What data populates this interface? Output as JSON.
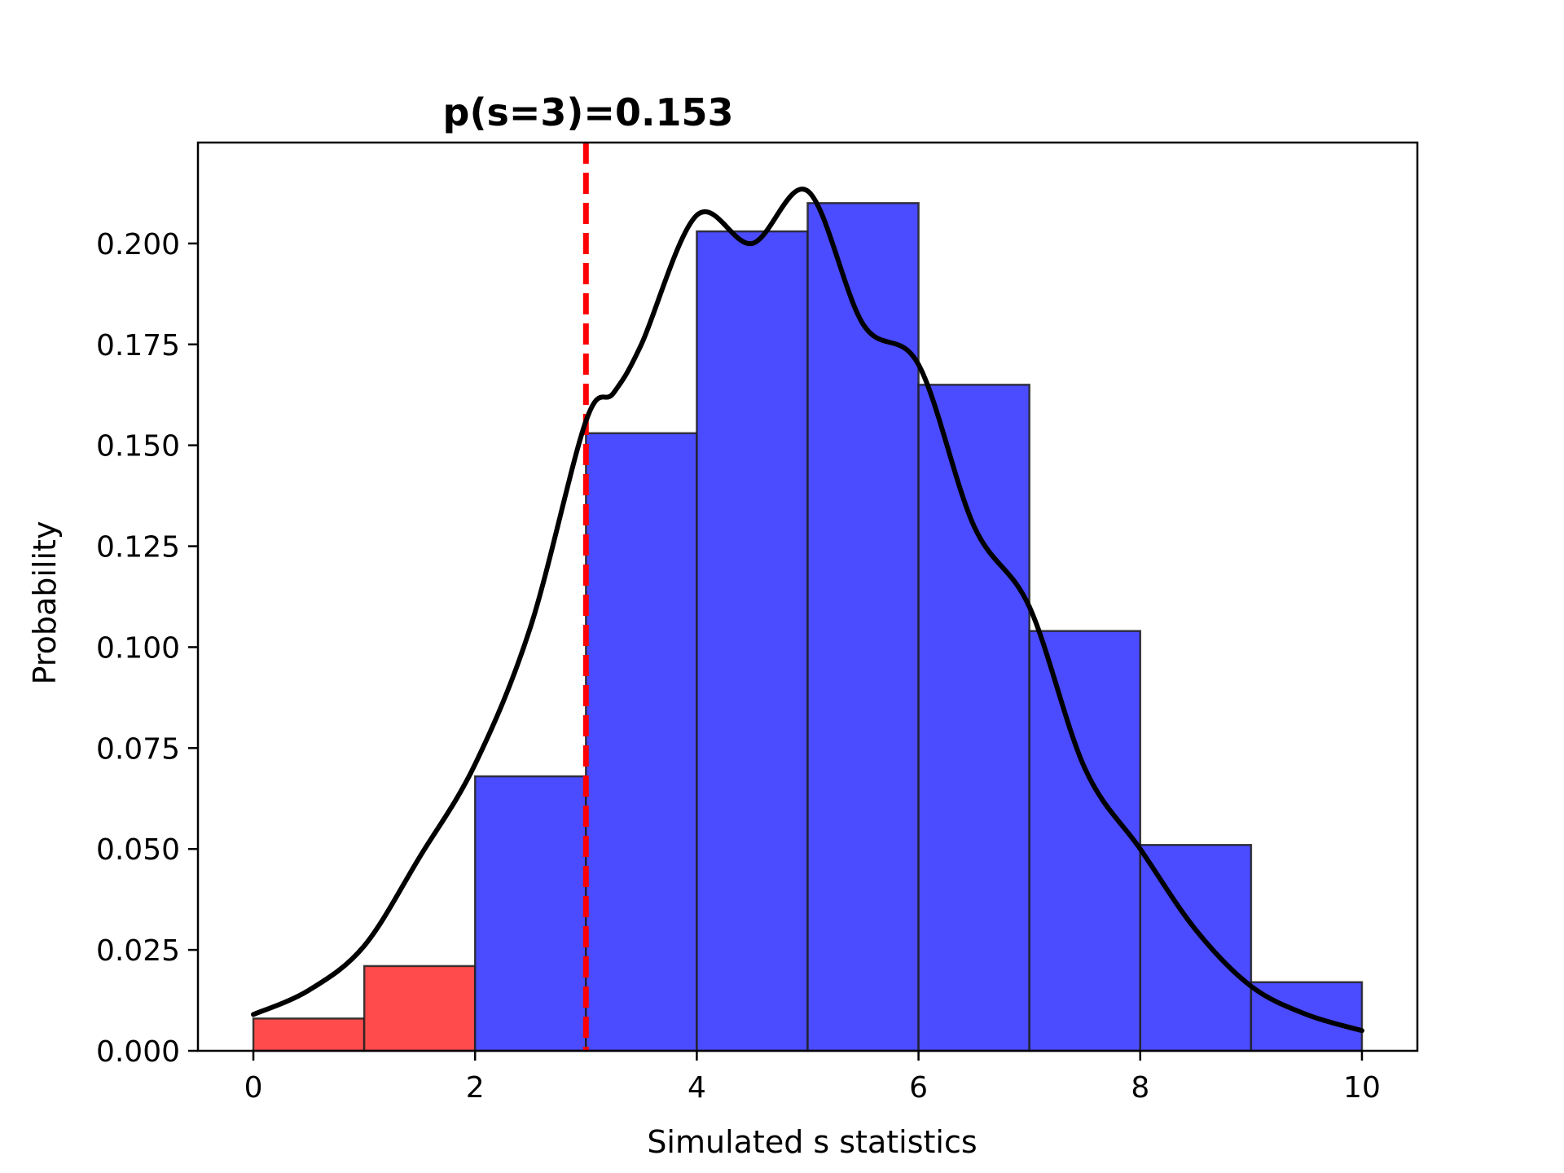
{
  "chart_data": {
    "type": "bar",
    "title": "p(s=3)=0.153",
    "xlabel": "Simulated s statistics",
    "ylabel": "Probability",
    "bins": [
      {
        "x0": 0,
        "x1": 1,
        "value": 0.008,
        "color": "#ff4b4b"
      },
      {
        "x0": 1,
        "x1": 2,
        "value": 0.021,
        "color": "#ff4b4b"
      },
      {
        "x0": 2,
        "x1": 3,
        "value": 0.068,
        "color": "#4b4bff"
      },
      {
        "x0": 3,
        "x1": 4,
        "value": 0.153,
        "color": "#4b4bff"
      },
      {
        "x0": 4,
        "x1": 5,
        "value": 0.203,
        "color": "#4b4bff"
      },
      {
        "x0": 5,
        "x1": 6,
        "value": 0.21,
        "color": "#4b4bff"
      },
      {
        "x0": 6,
        "x1": 7,
        "value": 0.165,
        "color": "#4b4bff"
      },
      {
        "x0": 7,
        "x1": 8,
        "value": 0.104,
        "color": "#4b4bff"
      },
      {
        "x0": 8,
        "x1": 9,
        "value": 0.051,
        "color": "#4b4bff"
      },
      {
        "x0": 9,
        "x1": 10,
        "value": 0.017,
        "color": "#4b4bff"
      }
    ],
    "density_curve": {
      "x": [
        0,
        0.5,
        1,
        1.5,
        2,
        2.5,
        3,
        3.25,
        3.5,
        4,
        4.5,
        5,
        5.5,
        6,
        6.5,
        7,
        7.5,
        8,
        8.5,
        9,
        9.5,
        10
      ],
      "y": [
        0.009,
        0.015,
        0.026,
        0.048,
        0.071,
        0.105,
        0.156,
        0.163,
        0.175,
        0.207,
        0.2,
        0.213,
        0.18,
        0.17,
        0.13,
        0.11,
        0.07,
        0.05,
        0.03,
        0.016,
        0.009,
        0.005
      ],
      "color": "#000000"
    },
    "observed_line": {
      "x": 3,
      "color": "#ff0000",
      "style": "dashed"
    },
    "xlim": [
      -0.5,
      10.5
    ],
    "ylim": [
      0,
      0.225
    ],
    "xticks": [
      0,
      2,
      4,
      6,
      8,
      10
    ],
    "xtick_labels": [
      "0",
      "2",
      "4",
      "6",
      "8",
      "10"
    ],
    "yticks": [
      0,
      0.025,
      0.05,
      0.075,
      0.1,
      0.125,
      0.15,
      0.175,
      0.2
    ],
    "ytick_labels": [
      "0.000",
      "0.025",
      "0.050",
      "0.075",
      "0.100",
      "0.125",
      "0.150",
      "0.175",
      "0.200"
    ],
    "grid": false,
    "legend": null
  }
}
